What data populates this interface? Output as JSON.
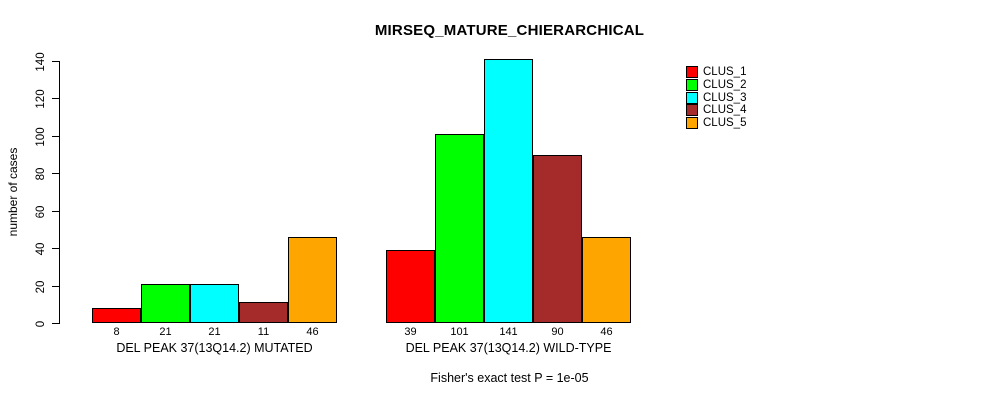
{
  "chart_data": {
    "type": "bar",
    "title": "MIRSEQ_MATURE_CHIERARCHICAL",
    "ylabel": "number of cases",
    "xlabel": "",
    "footnote": "Fisher's exact test P = 1e-05",
    "ylim": [
      0,
      140
    ],
    "yticks": [
      0,
      20,
      40,
      60,
      80,
      100,
      120,
      140
    ],
    "grid": false,
    "legend_position": "right",
    "bar_value_labels": true,
    "categories": [
      "DEL PEAK 37(13Q14.2) MUTATED",
      "DEL PEAK 37(13Q14.2) WILD-TYPE"
    ],
    "series": [
      {
        "name": "CLUS_1",
        "color": "#FF0000",
        "values": [
          8,
          39
        ]
      },
      {
        "name": "CLUS_2",
        "color": "#00FF00",
        "values": [
          21,
          101
        ]
      },
      {
        "name": "CLUS_3",
        "color": "#00FFFF",
        "values": [
          21,
          141
        ]
      },
      {
        "name": "CLUS_4",
        "color": "#A52A2A",
        "values": [
          11,
          90
        ]
      },
      {
        "name": "CLUS_5",
        "color": "#FFA500",
        "values": [
          46,
          46
        ]
      }
    ]
  }
}
